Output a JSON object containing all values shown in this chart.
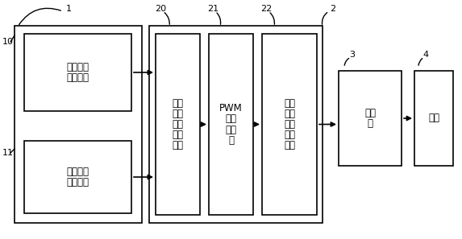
{
  "bg_color": "#ffffff",
  "line_color": "#000000",
  "box_color": "#ffffff",
  "line_width": 1.2,
  "label1": "1",
  "label2": "2",
  "label3": "3",
  "label4": "4",
  "label10": "10",
  "label11": "11",
  "label20": "20",
  "label21": "21",
  "label22": "22",
  "text_top_box": [
    "温度信号",
    "采样电路"
  ],
  "text_bot_box": [
    "交流电压",
    "采样电路"
  ],
  "text_b20": [
    "可控",
    "硅导",
    "通角",
    "调制",
    "电路"
  ],
  "text_b21": [
    "PWM",
    "信号",
    "发生",
    "器"
  ],
  "text_b22": [
    "驱动",
    "信号",
    "放大",
    "隔离",
    "电路"
  ],
  "text_b3": [
    "可控",
    "硅"
  ],
  "text_b4": [
    "风机"
  ],
  "fontsize": 8.5,
  "fontsize_label": 8
}
